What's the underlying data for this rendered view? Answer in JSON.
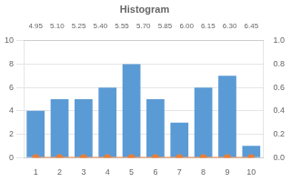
{
  "chart_data": {
    "type": "bar",
    "title": "Histogram",
    "x": [
      1,
      2,
      3,
      4,
      5,
      6,
      7,
      8,
      9,
      10
    ],
    "series": [
      {
        "type": "bar",
        "color": "#5B9BD5",
        "values": [
          4,
          5,
          5,
          6,
          8,
          5,
          3,
          6,
          7,
          1
        ]
      },
      {
        "type": "line",
        "color": "#ED7D31",
        "marker": "o",
        "values": [
          0,
          0,
          0,
          0,
          0,
          0,
          0,
          0,
          0,
          0
        ]
      }
    ],
    "xlim": [
      0.5,
      10.5
    ],
    "xticks": [
      1,
      2,
      3,
      4,
      5,
      6,
      7,
      8,
      9,
      10
    ],
    "x2lim": [
      0.5,
      10.5
    ],
    "x2ticks": [
      {
        "value": 1,
        "label": "4.95"
      },
      {
        "value": 1.9,
        "label": "5.10"
      },
      {
        "value": 2.8,
        "label": "5.25"
      },
      {
        "value": 3.7,
        "label": "5.40"
      },
      {
        "value": 4.6,
        "label": "5.55"
      },
      {
        "value": 5.5,
        "label": "5.70"
      },
      {
        "value": 6.4,
        "label": "5.85"
      },
      {
        "value": 7.3,
        "label": "6.00"
      },
      {
        "value": 8.2,
        "label": "6.15"
      },
      {
        "value": 9.1,
        "label": "6.30"
      },
      {
        "value": 10,
        "label": "6.45"
      }
    ],
    "ylim": [
      0,
      10
    ],
    "yticks": [
      0,
      2,
      4,
      6,
      8,
      10
    ],
    "y2lim": [
      0,
      1
    ],
    "y2ticks": [
      {
        "value": 0,
        "label": "0.0"
      },
      {
        "value": 0.2,
        "label": "0.2"
      },
      {
        "value": 0.4,
        "label": "0.4"
      },
      {
        "value": 0.6,
        "label": "0.6"
      },
      {
        "value": 0.8,
        "label": "0.8"
      },
      {
        "value": 1,
        "label": "1.0"
      }
    ],
    "grid": true
  }
}
